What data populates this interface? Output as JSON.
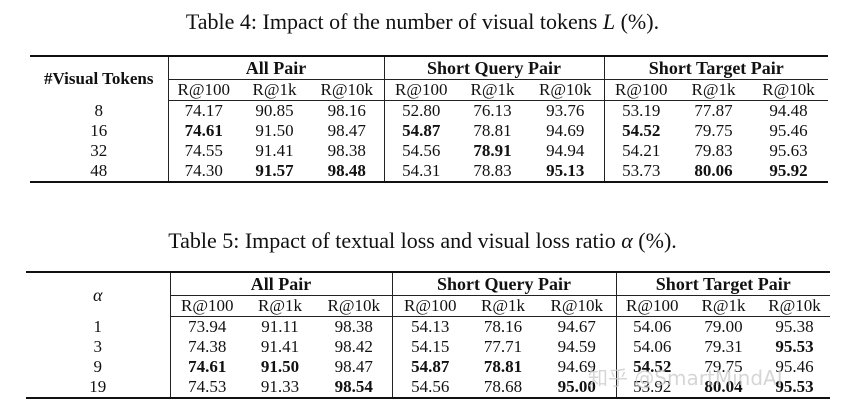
{
  "table4": {
    "caption": "Table 4: Impact of the number of visual tokens",
    "caption_symbol": "L",
    "caption_suffix": "(%).",
    "row_header": "#Visual Tokens",
    "groups": [
      "All Pair",
      "Short Query Pair",
      "Short Target Pair"
    ],
    "subheaders": [
      "R@100",
      "R@1k",
      "R@10k",
      "R@100",
      "R@1k",
      "R@10k",
      "R@100",
      "R@1k",
      "R@10k"
    ],
    "rows": [
      {
        "label": "8",
        "values": [
          "74.17",
          "90.85",
          "98.16",
          "52.80",
          "76.13",
          "93.76",
          "53.19",
          "77.87",
          "94.48"
        ],
        "bold": []
      },
      {
        "label": "16",
        "values": [
          "74.61",
          "91.50",
          "98.47",
          "54.87",
          "78.81",
          "94.69",
          "54.52",
          "79.75",
          "95.46"
        ],
        "bold": [
          0,
          3,
          6
        ]
      },
      {
        "label": "32",
        "values": [
          "74.55",
          "91.41",
          "98.38",
          "54.56",
          "78.91",
          "94.94",
          "54.21",
          "79.83",
          "95.63"
        ],
        "bold": [
          4
        ]
      },
      {
        "label": "48",
        "values": [
          "74.30",
          "91.57",
          "98.48",
          "54.31",
          "78.83",
          "95.13",
          "53.73",
          "80.06",
          "95.92"
        ],
        "bold": [
          1,
          2,
          5,
          7,
          8
        ]
      }
    ]
  },
  "table5": {
    "caption": "Table 5: Impact of textual loss and visual loss ratio",
    "caption_symbol": "α",
    "caption_suffix": "(%).",
    "row_header": "α",
    "groups": [
      "All Pair",
      "Short Query Pair",
      "Short Target Pair"
    ],
    "subheaders": [
      "R@100",
      "R@1k",
      "R@10k",
      "R@100",
      "R@1k",
      "R@10k",
      "R@100",
      "R@1k",
      "R@10k"
    ],
    "rows": [
      {
        "label": "1",
        "values": [
          "73.94",
          "91.11",
          "98.38",
          "54.13",
          "78.16",
          "94.67",
          "54.06",
          "79.00",
          "95.38"
        ],
        "bold": []
      },
      {
        "label": "3",
        "values": [
          "74.38",
          "91.41",
          "98.42",
          "54.15",
          "77.71",
          "94.59",
          "54.06",
          "79.31",
          "95.53"
        ],
        "bold": [
          8
        ]
      },
      {
        "label": "9",
        "values": [
          "74.61",
          "91.50",
          "98.47",
          "54.87",
          "78.81",
          "94.69",
          "54.52",
          "79.75",
          "95.46"
        ],
        "bold": [
          0,
          1,
          3,
          4,
          6
        ]
      },
      {
        "label": "19",
        "values": [
          "74.53",
          "91.33",
          "98.54",
          "54.56",
          "78.68",
          "95.00",
          "53.92",
          "80.04",
          "95.53"
        ],
        "bold": [
          2,
          5,
          7,
          8
        ]
      }
    ]
  },
  "watermark": "知乎 @SmartMindAI"
}
